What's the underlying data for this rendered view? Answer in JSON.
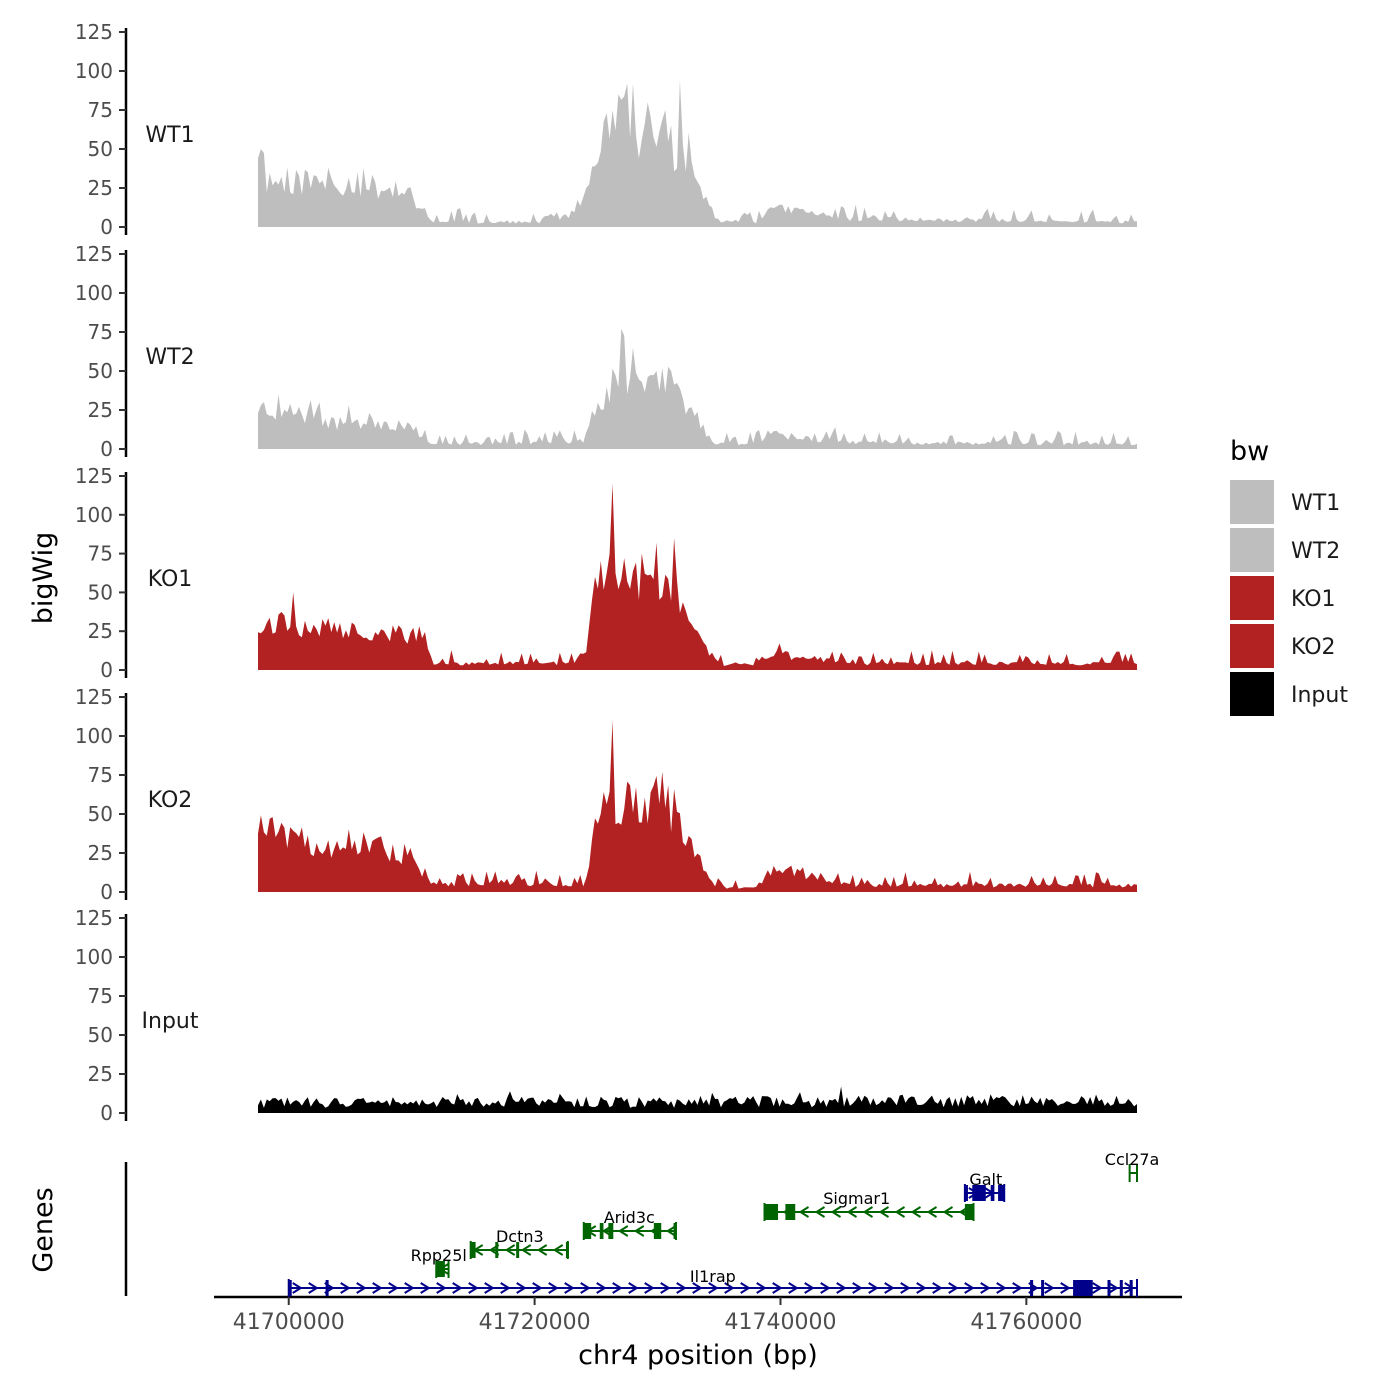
{
  "chart_data": {
    "type": "area",
    "region": {
      "chrom": "chr4",
      "start": 41697500,
      "end": 41769000
    },
    "ylabel": "bigWig",
    "xlabel": "chr4 position (bp)",
    "genes_label": "Genes",
    "ylim": [
      0,
      125
    ],
    "y_ticks": [
      "0",
      "25",
      "50",
      "75",
      "100",
      "125"
    ],
    "x_ticks": [
      {
        "value": 41700000,
        "label": "41700000"
      },
      {
        "value": 41720000,
        "label": "41720000"
      },
      {
        "value": 41740000,
        "label": "41740000"
      },
      {
        "value": 41760000,
        "label": "41760000"
      }
    ],
    "legend": {
      "title": "bw",
      "items": [
        {
          "label": "WT1",
          "color": "#bebebe"
        },
        {
          "label": "WT2",
          "color": "#bebebe"
        },
        {
          "label": "KO1",
          "color": "#b22222"
        },
        {
          "label": "KO2",
          "color": "#b22222"
        },
        {
          "label": "Input",
          "color": "#000000"
        }
      ]
    },
    "tracks": [
      {
        "name": "WT1",
        "color": "#bebebe",
        "seed": 11,
        "noise": 0.5,
        "profile": [
          [
            41697500,
            50
          ],
          [
            41698000,
            28
          ],
          [
            41704000,
            27
          ],
          [
            41707500,
            24
          ],
          [
            41709500,
            20
          ],
          [
            41711000,
            10
          ],
          [
            41711700,
            3
          ],
          [
            41720500,
            3
          ],
          [
            41721500,
            9
          ],
          [
            41722100,
            5
          ],
          [
            41724000,
            12
          ],
          [
            41725000,
            45
          ],
          [
            41726000,
            58
          ],
          [
            41727000,
            68
          ],
          [
            41728000,
            60
          ],
          [
            41729000,
            52
          ],
          [
            41730500,
            60
          ],
          [
            41731500,
            44
          ],
          [
            41732500,
            38
          ],
          [
            41734000,
            15
          ],
          [
            41735000,
            4
          ],
          [
            41738000,
            3
          ],
          [
            41739000,
            11
          ],
          [
            41741500,
            10
          ],
          [
            41743000,
            8
          ],
          [
            41745000,
            5
          ],
          [
            41769000,
            3
          ]
        ],
        "peaks": [
          [
            41727500,
            92
          ],
          [
            41728000,
            92
          ],
          [
            41731800,
            94
          ],
          [
            41726700,
            85
          ],
          [
            41729200,
            80
          ],
          [
            41730700,
            75
          ],
          [
            41697800,
            50
          ],
          [
            41705500,
            35
          ]
        ]
      },
      {
        "name": "WT2",
        "color": "#bebebe",
        "seed": 23,
        "noise": 0.5,
        "profile": [
          [
            41697500,
            26
          ],
          [
            41699000,
            24
          ],
          [
            41704000,
            16
          ],
          [
            41707000,
            17
          ],
          [
            41709500,
            15
          ],
          [
            41710500,
            8
          ],
          [
            41711500,
            3
          ],
          [
            41724000,
            4
          ],
          [
            41725000,
            25
          ],
          [
            41726500,
            45
          ],
          [
            41728000,
            40
          ],
          [
            41729500,
            42
          ],
          [
            41730500,
            42
          ],
          [
            41732000,
            30
          ],
          [
            41733500,
            15
          ],
          [
            41734500,
            4
          ],
          [
            41738000,
            3
          ],
          [
            41739000,
            9
          ],
          [
            41741000,
            8
          ],
          [
            41743000,
            6
          ],
          [
            41745000,
            4
          ],
          [
            41769000,
            3
          ]
        ],
        "peaks": [
          [
            41727000,
            77
          ],
          [
            41728000,
            65
          ],
          [
            41729800,
            50
          ],
          [
            41731200,
            50
          ],
          [
            41699200,
            35
          ],
          [
            41702500,
            30
          ],
          [
            41705000,
            28
          ]
        ]
      },
      {
        "name": "KO1",
        "color": "#b22222",
        "seed": 37,
        "noise": 0.45,
        "profile": [
          [
            41697500,
            27
          ],
          [
            41699000,
            30
          ],
          [
            41703500,
            25
          ],
          [
            41707000,
            24
          ],
          [
            41709500,
            22
          ],
          [
            41711000,
            21
          ],
          [
            41711700,
            4
          ],
          [
            41724000,
            4
          ],
          [
            41725000,
            50
          ],
          [
            41726500,
            65
          ],
          [
            41728000,
            62
          ],
          [
            41729500,
            48
          ],
          [
            41730500,
            50
          ],
          [
            41731500,
            45
          ],
          [
            41733000,
            22
          ],
          [
            41734500,
            8
          ],
          [
            41735300,
            3
          ],
          [
            41738000,
            4
          ],
          [
            41739500,
            12
          ],
          [
            41741000,
            8
          ],
          [
            41743000,
            7
          ],
          [
            41746000,
            4
          ],
          [
            41769000,
            4
          ]
        ],
        "peaks": [
          [
            41726300,
            120
          ],
          [
            41729800,
            82
          ],
          [
            41731300,
            85
          ],
          [
            41727300,
            72
          ],
          [
            41700300,
            50
          ]
        ]
      },
      {
        "name": "KO2",
        "color": "#b22222",
        "seed": 51,
        "noise": 0.5,
        "profile": [
          [
            41697500,
            42
          ],
          [
            41699500,
            32
          ],
          [
            41703500,
            30
          ],
          [
            41706000,
            28
          ],
          [
            41709500,
            24
          ],
          [
            41711000,
            12
          ],
          [
            41711700,
            5
          ],
          [
            41724000,
            4
          ],
          [
            41725000,
            40
          ],
          [
            41726000,
            58
          ],
          [
            41727000,
            55
          ],
          [
            41728500,
            50
          ],
          [
            41730000,
            55
          ],
          [
            41731500,
            52
          ],
          [
            41733000,
            22
          ],
          [
            41734800,
            3
          ],
          [
            41738000,
            3
          ],
          [
            41739000,
            12
          ],
          [
            41741500,
            13
          ],
          [
            41743000,
            8
          ],
          [
            41746000,
            4
          ],
          [
            41769000,
            4
          ]
        ],
        "peaks": [
          [
            41726300,
            110
          ],
          [
            41729700,
            68
          ],
          [
            41730300,
            77
          ],
          [
            41731300,
            66
          ],
          [
            41698500,
            47
          ]
        ]
      },
      {
        "name": "Input",
        "color": "#000000",
        "seed": 73,
        "noise": 0.9,
        "profile": [
          [
            41697500,
            6
          ],
          [
            41769000,
            7
          ]
        ],
        "peaks": [
          [
            41745000,
            17
          ],
          [
            41718000,
            14
          ],
          [
            41734500,
            13
          ],
          [
            41757000,
            12
          ]
        ]
      }
    ],
    "genes": [
      {
        "name": "Il1rap",
        "strand": "+",
        "start": 41700000,
        "end": 41769000,
        "color": "#00008b",
        "row": 0,
        "labelx": 41734500,
        "exons": [
          [
            41700000,
            41700150
          ],
          [
            41703000,
            41703150
          ],
          [
            41760300,
            41760550
          ],
          [
            41761200,
            41761350
          ],
          [
            41763800,
            41765400
          ],
          [
            41766600,
            41766800
          ],
          [
            41767600,
            41767800
          ],
          [
            41768400,
            41768650
          ]
        ]
      },
      {
        "name": "Rpp25l",
        "strand": "-",
        "start": 41712000,
        "end": 41713000,
        "color": "#006400",
        "row": 1,
        "labelx": 41712200,
        "exons": [
          [
            41712000,
            41712700
          ]
        ]
      },
      {
        "name": "Dctn3",
        "strand": "-",
        "start": 41714800,
        "end": 41722700,
        "color": "#006400",
        "row": 2,
        "labelx": 41718800,
        "exons": [
          [
            41714800,
            41715200
          ],
          [
            41716800,
            41716950
          ],
          [
            41718500,
            41718650
          ],
          [
            41722550,
            41722700
          ]
        ]
      },
      {
        "name": "Arid3c",
        "strand": "-",
        "start": 41724000,
        "end": 41731500,
        "color": "#006400",
        "row": 3,
        "labelx": 41727700,
        "exons": [
          [
            41724000,
            41724600
          ],
          [
            41725300,
            41725600
          ],
          [
            41726000,
            41726400
          ],
          [
            41729700,
            41730300
          ],
          [
            41731300,
            41731500
          ]
        ]
      },
      {
        "name": "Sigmar1",
        "strand": "-",
        "start": 41738700,
        "end": 41755700,
        "color": "#006400",
        "row": 4,
        "labelx": 41746200,
        "exons": [
          [
            41738700,
            41739800
          ],
          [
            41740400,
            41741200
          ],
          [
            41755000,
            41755700
          ]
        ]
      },
      {
        "name": "Galt",
        "strand": "+",
        "start": 41755000,
        "end": 41758200,
        "color": "#00008b",
        "row": 5,
        "labelx": 41756700,
        "exons": [
          [
            41755000,
            41755250
          ],
          [
            41755600,
            41756700
          ],
          [
            41757100,
            41757400
          ],
          [
            41757700,
            41758200
          ]
        ]
      },
      {
        "name": "Ccl27a",
        "strand": "-",
        "start": 41768400,
        "end": 41769000,
        "color": "#006400",
        "row": 6,
        "labelx": 41768600,
        "exons": []
      }
    ]
  }
}
